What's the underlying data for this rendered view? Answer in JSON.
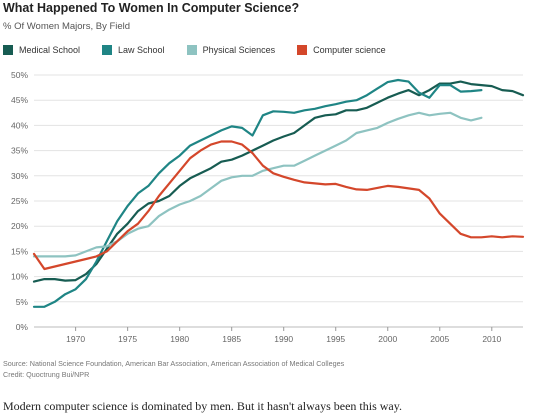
{
  "header": {
    "title": "What Happened To Women In Computer Science?",
    "subtitle": "% Of Women Majors, By Field"
  },
  "footer": {
    "source": "Source: National Science Foundation, American Bar Association, American Association of Medical Colleges",
    "credit": "Credit: Quoctrung Bui/NPR",
    "caption": "Modern computer science is dominated by men. But it hasn't always been this way."
  },
  "chart_data": {
    "type": "line",
    "title": "What Happened To Women In Computer Science?",
    "subtitle": "% Of Women Majors, By Field",
    "xlabel": "",
    "ylabel": "",
    "xlim": [
      1966,
      2013
    ],
    "ylim": [
      0,
      50
    ],
    "x_ticks": [
      1970,
      1975,
      1980,
      1985,
      1990,
      1995,
      2000,
      2005,
      2010
    ],
    "y_ticks": [
      0,
      5,
      10,
      15,
      20,
      25,
      30,
      35,
      40,
      45,
      50
    ],
    "y_tick_labels": [
      "0%",
      "5%",
      "10%",
      "15%",
      "20%",
      "25%",
      "30%",
      "35%",
      "40%",
      "45%",
      "50%"
    ],
    "grid": true,
    "legend_position": "top-left",
    "series": [
      {
        "name": "Medical School",
        "color": "#175c52",
        "points": [
          [
            1966,
            9
          ],
          [
            1967,
            9.5
          ],
          [
            1968,
            9.5
          ],
          [
            1969,
            9.2
          ],
          [
            1970,
            9.3
          ],
          [
            1971,
            10.5
          ],
          [
            1972,
            12.5
          ],
          [
            1973,
            15.5
          ],
          [
            1974,
            18.5
          ],
          [
            1975,
            20.5
          ],
          [
            1976,
            23
          ],
          [
            1977,
            24.5
          ],
          [
            1978,
            25
          ],
          [
            1979,
            26
          ],
          [
            1980,
            28
          ],
          [
            1981,
            29.5
          ],
          [
            1982,
            30.5
          ],
          [
            1983,
            31.5
          ],
          [
            1984,
            32.8
          ],
          [
            1985,
            33.2
          ],
          [
            1986,
            34
          ],
          [
            1987,
            35
          ],
          [
            1988,
            36
          ],
          [
            1989,
            37
          ],
          [
            1990,
            37.8
          ],
          [
            1991,
            38.5
          ],
          [
            1992,
            40
          ],
          [
            1993,
            41.5
          ],
          [
            1994,
            42
          ],
          [
            1995,
            42.2
          ],
          [
            1996,
            43
          ],
          [
            1997,
            43
          ],
          [
            1998,
            43.5
          ],
          [
            1999,
            44.5
          ],
          [
            2000,
            45.5
          ],
          [
            2001,
            46.3
          ],
          [
            2002,
            47
          ],
          [
            2003,
            46
          ],
          [
            2004,
            47
          ],
          [
            2005,
            48.3
          ],
          [
            2006,
            48.3
          ],
          [
            2007,
            48.7
          ],
          [
            2008,
            48.2
          ],
          [
            2009,
            48
          ],
          [
            2010,
            47.8
          ],
          [
            2011,
            47
          ],
          [
            2012,
            46.8
          ],
          [
            2013,
            46
          ]
        ]
      },
      {
        "name": "Law School",
        "color": "#1f8585",
        "points": [
          [
            1966,
            4
          ],
          [
            1967,
            4
          ],
          [
            1968,
            5
          ],
          [
            1969,
            6.5
          ],
          [
            1970,
            7.5
          ],
          [
            1971,
            9.5
          ],
          [
            1972,
            13
          ],
          [
            1973,
            17
          ],
          [
            1974,
            21
          ],
          [
            1975,
            24
          ],
          [
            1976,
            26.5
          ],
          [
            1977,
            28
          ],
          [
            1978,
            30.5
          ],
          [
            1979,
            32.5
          ],
          [
            1980,
            34
          ],
          [
            1981,
            36
          ],
          [
            1982,
            37
          ],
          [
            1983,
            38
          ],
          [
            1984,
            39
          ],
          [
            1985,
            39.8
          ],
          [
            1986,
            39.5
          ],
          [
            1987,
            38
          ],
          [
            1988,
            42
          ],
          [
            1989,
            42.8
          ],
          [
            1990,
            42.7
          ],
          [
            1991,
            42.5
          ],
          [
            1992,
            43
          ],
          [
            1993,
            43.3
          ],
          [
            1994,
            43.8
          ],
          [
            1995,
            44.2
          ],
          [
            1996,
            44.7
          ],
          [
            1997,
            45
          ],
          [
            1998,
            46
          ],
          [
            1999,
            47.3
          ],
          [
            2000,
            48.6
          ],
          [
            2001,
            49
          ],
          [
            2002,
            48.7
          ],
          [
            2003,
            46.5
          ],
          [
            2004,
            45.5
          ],
          [
            2005,
            48
          ],
          [
            2006,
            48
          ],
          [
            2007,
            46.7
          ],
          [
            2008,
            46.8
          ],
          [
            2009,
            47
          ]
        ]
      },
      {
        "name": "Physical Sciences",
        "color": "#8ec3c1",
        "points": [
          [
            1966,
            14
          ],
          [
            1967,
            14
          ],
          [
            1968,
            14
          ],
          [
            1969,
            14
          ],
          [
            1970,
            14.2
          ],
          [
            1971,
            15
          ],
          [
            1972,
            15.8
          ],
          [
            1973,
            16
          ],
          [
            1974,
            17
          ],
          [
            1975,
            18.5
          ],
          [
            1976,
            19.5
          ],
          [
            1977,
            20
          ],
          [
            1978,
            22
          ],
          [
            1979,
            23.3
          ],
          [
            1980,
            24.3
          ],
          [
            1981,
            25
          ],
          [
            1982,
            26
          ],
          [
            1983,
            27.5
          ],
          [
            1984,
            29
          ],
          [
            1985,
            29.7
          ],
          [
            1986,
            30
          ],
          [
            1987,
            30
          ],
          [
            1988,
            31
          ],
          [
            1989,
            31.5
          ],
          [
            1990,
            32
          ],
          [
            1991,
            32
          ],
          [
            1992,
            33
          ],
          [
            1993,
            34
          ],
          [
            1994,
            35
          ],
          [
            1995,
            36
          ],
          [
            1996,
            37
          ],
          [
            1997,
            38.5
          ],
          [
            1998,
            39
          ],
          [
            1999,
            39.5
          ],
          [
            2000,
            40.5
          ],
          [
            2001,
            41.3
          ],
          [
            2002,
            42
          ],
          [
            2003,
            42.5
          ],
          [
            2004,
            42
          ],
          [
            2005,
            42.3
          ],
          [
            2006,
            42.5
          ],
          [
            2007,
            41.5
          ],
          [
            2008,
            41
          ],
          [
            2009,
            41.5
          ]
        ]
      },
      {
        "name": "Computer science",
        "color": "#d4472b",
        "points": [
          [
            1966,
            14.5
          ],
          [
            1967,
            11.5
          ],
          [
            1968,
            12
          ],
          [
            1969,
            12.5
          ],
          [
            1970,
            13
          ],
          [
            1971,
            13.5
          ],
          [
            1972,
            14
          ],
          [
            1973,
            15
          ],
          [
            1974,
            17
          ],
          [
            1975,
            19
          ],
          [
            1976,
            20.5
          ],
          [
            1977,
            23
          ],
          [
            1978,
            26
          ],
          [
            1979,
            28.5
          ],
          [
            1980,
            31
          ],
          [
            1981,
            33.5
          ],
          [
            1982,
            35
          ],
          [
            1983,
            36.2
          ],
          [
            1984,
            36.8
          ],
          [
            1985,
            36.8
          ],
          [
            1986,
            36.2
          ],
          [
            1987,
            34.5
          ],
          [
            1988,
            32
          ],
          [
            1989,
            30.5
          ],
          [
            1990,
            29.8
          ],
          [
            1991,
            29.2
          ],
          [
            1992,
            28.7
          ],
          [
            1993,
            28.5
          ],
          [
            1994,
            28.3
          ],
          [
            1995,
            28.4
          ],
          [
            1996,
            27.8
          ],
          [
            1997,
            27.3
          ],
          [
            1998,
            27.2
          ],
          [
            1999,
            27.6
          ],
          [
            2000,
            28
          ],
          [
            2001,
            27.8
          ],
          [
            2002,
            27.5
          ],
          [
            2003,
            27.2
          ],
          [
            2004,
            25.5
          ],
          [
            2005,
            22.5
          ],
          [
            2006,
            20.5
          ],
          [
            2007,
            18.5
          ],
          [
            2008,
            17.8
          ],
          [
            2009,
            17.8
          ],
          [
            2010,
            18
          ],
          [
            2011,
            17.8
          ],
          [
            2012,
            18
          ],
          [
            2013,
            17.9
          ]
        ]
      }
    ]
  }
}
